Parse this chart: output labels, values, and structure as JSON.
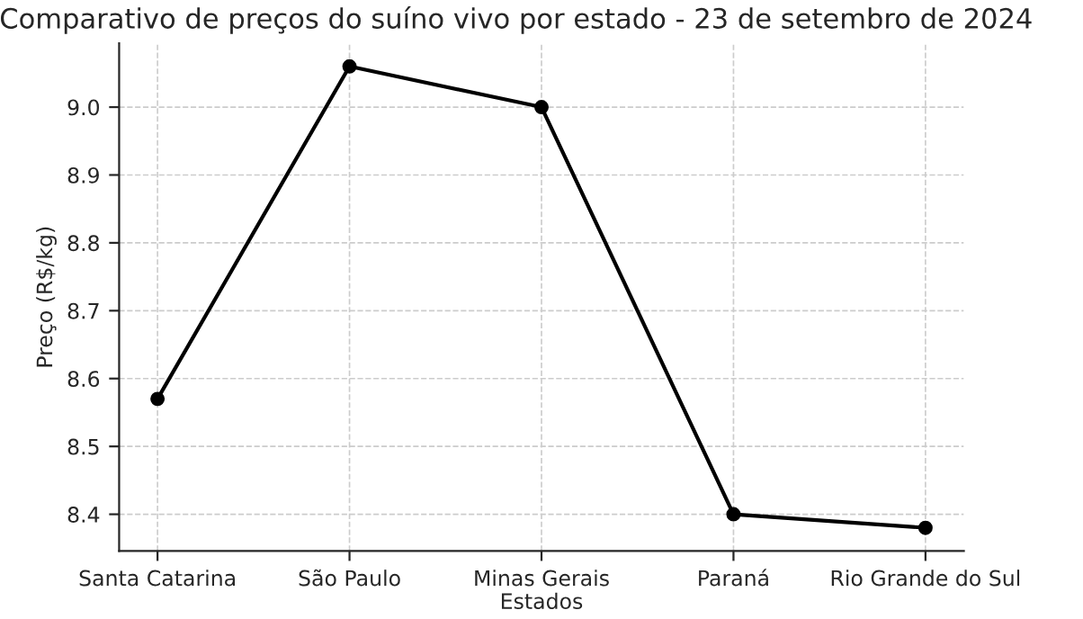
{
  "chart_data": {
    "type": "line",
    "title": "Comparativo de preços do suíno vivo por estado - 23 de setembro de 2024",
    "xlabel": "Estados",
    "ylabel": "Preço (R$/kg)",
    "categories": [
      "Santa Catarina",
      "São Paulo",
      "Minas Gerais",
      "Paraná",
      "Rio Grande do Sul"
    ],
    "series": [
      {
        "color": "#000000",
        "values": [
          8.57,
          9.06,
          9.0,
          8.4,
          8.38
        ]
      }
    ],
    "ylim": [
      8.346,
      9.094
    ],
    "yticks": [
      {
        "value": 8.4,
        "label": "8.4"
      },
      {
        "value": 8.5,
        "label": "8.5"
      },
      {
        "value": 8.6,
        "label": "8.6"
      },
      {
        "value": 8.7,
        "label": "8.7"
      },
      {
        "value": 8.8,
        "label": "8.8"
      },
      {
        "value": 8.9,
        "label": "8.9"
      },
      {
        "value": 9.0,
        "label": "9.0"
      }
    ],
    "grid": true,
    "marker": "circle",
    "line_style": "solid",
    "legend": false
  }
}
